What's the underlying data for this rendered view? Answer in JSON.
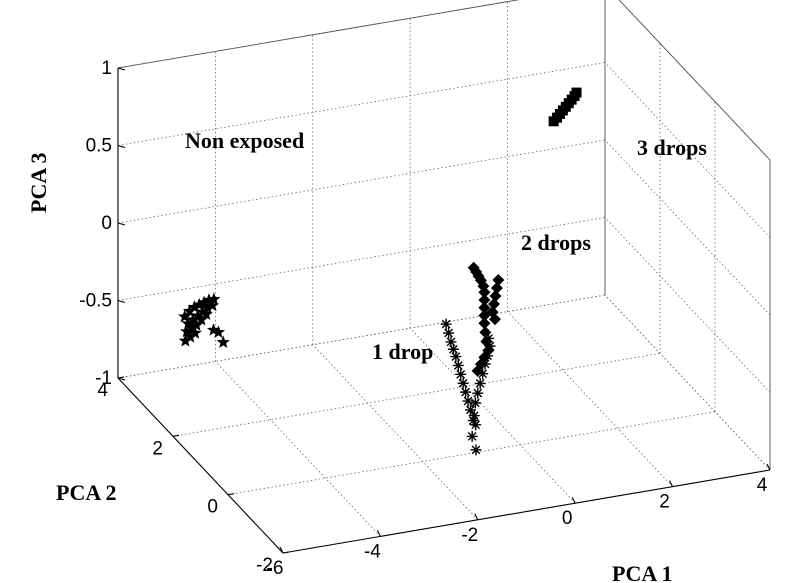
{
  "chart_data": {
    "type": "scatter",
    "projection": "3d",
    "title": "",
    "xlabel": "PCA 1",
    "ylabel": "PCA 2",
    "zlabel": "PCA 3",
    "xlim": [
      -6,
      4
    ],
    "ylim": [
      -2,
      4
    ],
    "zlim": [
      -1,
      1
    ],
    "xticks": [
      -6,
      -4,
      -2,
      0,
      2,
      4
    ],
    "yticks": [
      -2,
      0,
      2,
      4
    ],
    "zticks": [
      -1,
      -0.5,
      0,
      0.5,
      1
    ],
    "ztick_labels": [
      "-1",
      "-0.5",
      "0",
      "0.5",
      "1"
    ],
    "grid": true,
    "marker_color": "#000000",
    "series": [
      {
        "marker": "star",
        "points": [
          [
            -6.1,
            1.4,
            -0.11
          ],
          [
            -6.0,
            1.4,
            -0.08
          ],
          [
            -5.9,
            1.4,
            -0.06
          ],
          [
            -5.8,
            1.4,
            -0.05
          ],
          [
            -5.7,
            1.4,
            -0.04
          ],
          [
            -5.6,
            1.4,
            -0.03
          ],
          [
            -5.5,
            1.4,
            -0.03
          ],
          [
            -6.0,
            1.45,
            -0.17
          ],
          [
            -5.9,
            1.45,
            -0.15
          ],
          [
            -5.8,
            1.45,
            -0.13
          ],
          [
            -5.7,
            1.45,
            -0.11
          ],
          [
            -5.6,
            1.45,
            -0.09
          ],
          [
            -5.5,
            1.45,
            -0.08
          ],
          [
            -6.0,
            1.5,
            -0.23
          ],
          [
            -5.9,
            1.5,
            -0.21
          ],
          [
            -5.8,
            1.5,
            -0.2
          ],
          [
            -5.7,
            1.5,
            -0.17
          ],
          [
            -5.6,
            1.5,
            -0.14
          ],
          [
            -6.0,
            1.55,
            -0.3
          ],
          [
            -5.9,
            1.55,
            -0.28
          ],
          [
            -5.8,
            1.55,
            -0.26
          ],
          [
            -5.45,
            1.5,
            -0.25
          ],
          [
            -5.35,
            1.5,
            -0.27
          ],
          [
            -5.25,
            1.5,
            -0.34
          ]
        ]
      },
      {
        "marker": "asterisk",
        "points": [
          [
            -0.9,
            1.1,
            -0.38
          ],
          [
            -0.85,
            1.1,
            -0.44
          ],
          [
            -0.8,
            1.1,
            -0.5
          ],
          [
            -0.75,
            1.1,
            -0.55
          ],
          [
            -0.7,
            1.1,
            -0.6
          ],
          [
            -0.65,
            1.1,
            -0.66
          ],
          [
            -0.6,
            1.1,
            -0.72
          ],
          [
            -0.55,
            1.1,
            -0.78
          ],
          [
            -0.5,
            1.1,
            -0.84
          ],
          [
            -0.45,
            1.1,
            -0.9
          ],
          [
            -0.4,
            1.1,
            -0.96
          ],
          [
            -0.35,
            1.05,
            -0.99
          ],
          [
            -0.35,
            1.0,
            -1.04
          ],
          [
            -0.4,
            1.0,
            -1.01
          ],
          [
            -0.3,
            1.1,
            -0.92
          ],
          [
            -0.25,
            1.1,
            -0.86
          ],
          [
            -0.2,
            1.1,
            -0.8
          ],
          [
            -0.15,
            1.1,
            -0.74
          ],
          [
            -0.1,
            1.1,
            -0.68
          ],
          [
            -0.05,
            1.1,
            -0.63
          ],
          [
            0.0,
            1.1,
            -0.57
          ],
          [
            0.0,
            1.15,
            -0.53
          ],
          [
            -0.45,
            0.95,
            -1.1
          ],
          [
            -0.4,
            0.9,
            -1.18
          ]
        ]
      },
      {
        "marker": "diamond",
        "points": [
          [
            0.4,
            2.4,
            -0.33
          ],
          [
            0.45,
            2.4,
            -0.36
          ],
          [
            0.5,
            2.4,
            -0.39
          ],
          [
            0.55,
            2.4,
            -0.42
          ],
          [
            0.6,
            2.4,
            -0.46
          ],
          [
            0.62,
            2.4,
            -0.5
          ],
          [
            0.62,
            2.4,
            -0.55
          ],
          [
            0.62,
            2.4,
            -0.6
          ],
          [
            0.62,
            2.4,
            -0.65
          ],
          [
            0.62,
            2.4,
            -0.7
          ],
          [
            0.64,
            2.4,
            -0.76
          ],
          [
            0.66,
            2.4,
            -0.82
          ],
          [
            0.7,
            2.4,
            -0.88
          ],
          [
            0.62,
            2.4,
            -0.92
          ],
          [
            0.55,
            2.4,
            -0.96
          ],
          [
            0.48,
            2.4,
            -1.0
          ],
          [
            0.9,
            2.6,
            -0.68
          ],
          [
            0.93,
            2.6,
            -0.63
          ],
          [
            0.96,
            2.6,
            -0.58
          ],
          [
            0.99,
            2.6,
            -0.53
          ],
          [
            1.02,
            2.6,
            -0.48
          ],
          [
            0.95,
            2.6,
            -0.73
          ]
        ]
      },
      {
        "marker": "square",
        "points": [
          [
            2.55,
            3.3,
            0.33
          ],
          [
            2.62,
            3.3,
            0.35
          ],
          [
            2.68,
            3.3,
            0.37
          ],
          [
            2.74,
            3.3,
            0.39
          ],
          [
            2.8,
            3.3,
            0.41
          ],
          [
            2.86,
            3.3,
            0.43
          ],
          [
            2.92,
            3.3,
            0.45
          ],
          [
            2.98,
            3.3,
            0.47
          ],
          [
            3.02,
            3.3,
            0.49
          ]
        ]
      }
    ],
    "annotations": [
      {
        "text": "Non exposed",
        "x": -5.2,
        "y": 3.0,
        "z": 0.75
      },
      {
        "text": "1 drop",
        "x": -2.2,
        "y": 0.2,
        "z": -0.15
      },
      {
        "text": "2 drops",
        "x": 0.7,
        "y": 2.7,
        "z": -0.05
      },
      {
        "text": "3 drops",
        "x": 2.6,
        "y": 3.2,
        "z": 0.79
      }
    ]
  }
}
